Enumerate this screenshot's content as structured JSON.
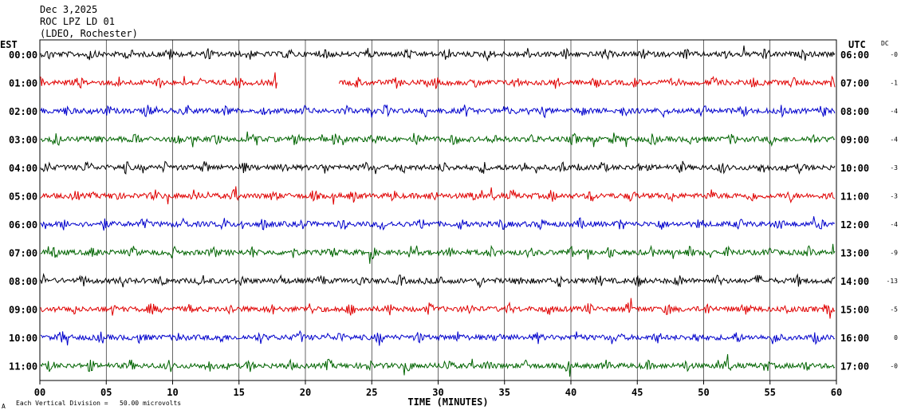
{
  "header": {
    "date": "Dec 3,2025",
    "station": "ROC LPZ LD 01",
    "network": "(LDEO, Rochester)"
  },
  "left_axis_label": "EST",
  "right_axis_label": "UTC",
  "dc_label": "DC",
  "footer": {
    "scale_note": "Each Vertical Division =   50.00 microvolts",
    "corner_mark": "A"
  },
  "chart_data": {
    "type": "line",
    "xlabel": "TIME (MINUTES)",
    "xlim": [
      0,
      60
    ],
    "x_ticks": [
      "00",
      "05",
      "10",
      "15",
      "20",
      "25",
      "30",
      "35",
      "40",
      "45",
      "50",
      "55",
      "60"
    ],
    "grid": "vertical lines every 5 minutes",
    "trace_colors": [
      "#000000",
      "#e00000",
      "#0000cc",
      "#006400"
    ],
    "rows": [
      {
        "est": "00:00",
        "utc": "06:00",
        "dc": "-0",
        "color": "#000000"
      },
      {
        "est": "01:00",
        "utc": "07:00",
        "dc": "-1",
        "color": "#e00000",
        "gap_minutes": [
          17.8,
          22.5
        ]
      },
      {
        "est": "02:00",
        "utc": "08:00",
        "dc": "-4",
        "color": "#0000cc"
      },
      {
        "est": "03:00",
        "utc": "09:00",
        "dc": "-4",
        "color": "#006400"
      },
      {
        "est": "04:00",
        "utc": "10:00",
        "dc": "-3",
        "color": "#000000"
      },
      {
        "est": "05:00",
        "utc": "11:00",
        "dc": "-3",
        "color": "#e00000"
      },
      {
        "est": "06:00",
        "utc": "12:00",
        "dc": "-4",
        "color": "#0000cc"
      },
      {
        "est": "07:00",
        "utc": "13:00",
        "dc": "-9",
        "color": "#006400"
      },
      {
        "est": "08:00",
        "utc": "14:00",
        "dc": "-13",
        "color": "#000000"
      },
      {
        "est": "09:00",
        "utc": "15:00",
        "dc": "-5",
        "color": "#e00000"
      },
      {
        "est": "10:00",
        "utc": "16:00",
        "dc": "0",
        "color": "#0000cc"
      },
      {
        "est": "11:00",
        "utc": "17:00",
        "dc": "-0",
        "color": "#006400"
      }
    ]
  }
}
